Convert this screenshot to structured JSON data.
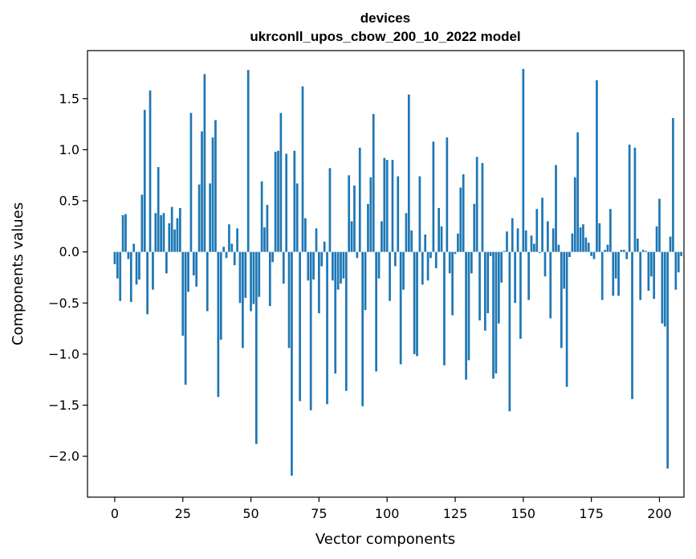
{
  "chart_data": {
    "type": "bar",
    "title": "devices",
    "subtitle": "ukrconll_upos_cbow_200_10_2022 model",
    "xlabel": "Vector components",
    "ylabel": "Components values",
    "xlim": [
      -10,
      209
    ],
    "ylim": [
      -2.4,
      1.97
    ],
    "xticks": [
      0,
      25,
      50,
      75,
      100,
      125,
      150,
      175,
      200
    ],
    "yticks": [
      1.5,
      1.0,
      0.5,
      0.0,
      -0.5,
      -1.0,
      -1.5,
      -2.0
    ],
    "ytick_labels": [
      "1.5",
      "1.0",
      "0.5",
      "0.0",
      "−0.5",
      "−1.0",
      "−1.5",
      "−2.0"
    ],
    "grid": false,
    "bar_color": "#1f77b4",
    "values": [
      -0.12,
      -0.26,
      -0.48,
      0.36,
      0.37,
      -0.07,
      -0.49,
      0.08,
      -0.32,
      -0.27,
      0.56,
      1.39,
      -0.61,
      1.58,
      -0.37,
      0.38,
      0.83,
      0.36,
      0.38,
      -0.21,
      0.28,
      0.44,
      0.22,
      0.33,
      0.43,
      -0.82,
      -1.3,
      -0.39,
      1.36,
      -0.23,
      -0.34,
      0.66,
      1.18,
      1.74,
      -0.58,
      0.67,
      1.12,
      1.29,
      -1.42,
      -0.86,
      0.05,
      -0.06,
      0.27,
      0.08,
      -0.13,
      0.23,
      -0.5,
      -0.94,
      -0.45,
      1.78,
      -0.58,
      -0.51,
      -1.88,
      -0.44,
      0.69,
      0.24,
      0.46,
      -0.53,
      -0.1,
      0.98,
      0.99,
      1.36,
      -0.31,
      0.96,
      -0.94,
      -2.19,
      0.99,
      0.67,
      -1.46,
      1.62,
      0.33,
      -0.28,
      -1.55,
      -0.27,
      0.23,
      -0.6,
      -0.14,
      0.1,
      -1.49,
      0.82,
      -0.28,
      -1.19,
      -0.37,
      -0.31,
      -0.26,
      -1.36,
      0.75,
      0.3,
      0.65,
      -0.06,
      1.02,
      -1.51,
      -0.57,
      0.47,
      0.73,
      1.35,
      -1.17,
      -0.26,
      0.3,
      0.92,
      0.9,
      -0.48,
      0.9,
      -0.14,
      0.74,
      -1.1,
      -0.37,
      0.38,
      1.54,
      0.21,
      -1.0,
      -1.02,
      0.74,
      -0.32,
      0.17,
      -0.28,
      -0.06,
      1.08,
      -0.16,
      0.43,
      0.25,
      -1.11,
      1.12,
      -0.21,
      -0.62,
      -0.02,
      0.18,
      0.63,
      0.76,
      -1.25,
      -1.06,
      -0.21,
      0.47,
      0.93,
      -0.67,
      0.87,
      -0.77,
      -0.6,
      -0.04,
      -1.24,
      -1.19,
      -0.7,
      -0.3,
      0.01,
      0.2,
      -1.56,
      0.33,
      -0.5,
      0.23,
      -0.85,
      1.79,
      0.21,
      -0.47,
      0.16,
      0.08,
      0.42,
      -0.01,
      0.53,
      -0.24,
      0.3,
      -0.65,
      0.23,
      0.85,
      0.07,
      -0.94,
      -0.36,
      -1.32,
      -0.05,
      0.18,
      0.73,
      1.17,
      0.24,
      0.27,
      0.14,
      0.09,
      -0.04,
      -0.07,
      1.68,
      0.28,
      -0.47,
      0.02,
      0.07,
      0.42,
      -0.43,
      -0.26,
      -0.43,
      0.02,
      0.02,
      -0.07,
      1.05,
      -1.44,
      1.02,
      0.13,
      -0.47,
      0.02,
      0.01,
      -0.38,
      -0.24,
      -0.46,
      0.25,
      0.52,
      -0.7,
      -0.73,
      -2.12,
      0.15,
      1.31,
      -0.37,
      -0.2,
      -0.04
    ]
  }
}
